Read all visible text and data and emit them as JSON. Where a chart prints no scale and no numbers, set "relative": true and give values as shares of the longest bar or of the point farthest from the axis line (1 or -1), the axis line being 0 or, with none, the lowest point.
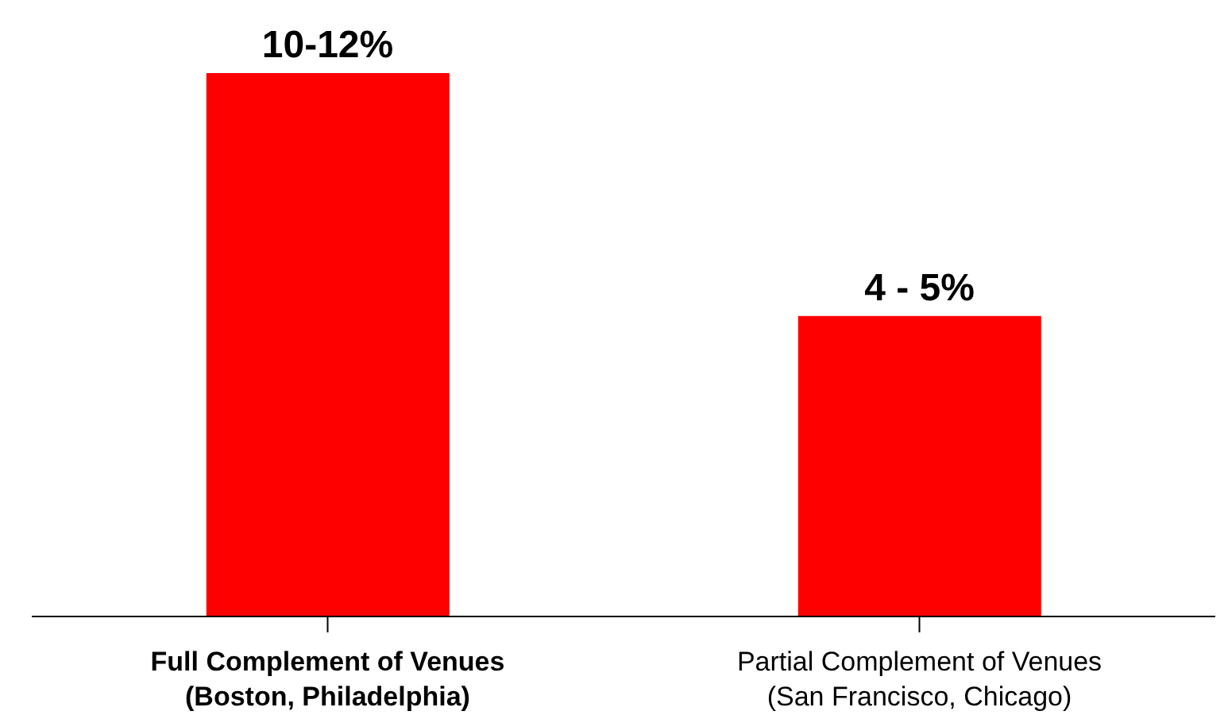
{
  "chart_data": {
    "type": "bar",
    "relative": true,
    "categories": [
      "Full Complement of Venues\n(Boston, Philadelphia)",
      "Partial Complement of Venues\n(San Francisco, Chicago)"
    ],
    "values": [
      1,
      0.553
    ],
    "color": "#ff0000",
    "annotations": [
      {
        "text": "10-12%",
        "x": "Full Complement of Venues\n(Boston, Philadelphia)",
        "y": 1
      },
      {
        "text": "4 - 5%",
        "x": "Partial Complement of Venues\n(San Francisco, Chicago)",
        "y": 0.553
      }
    ]
  }
}
